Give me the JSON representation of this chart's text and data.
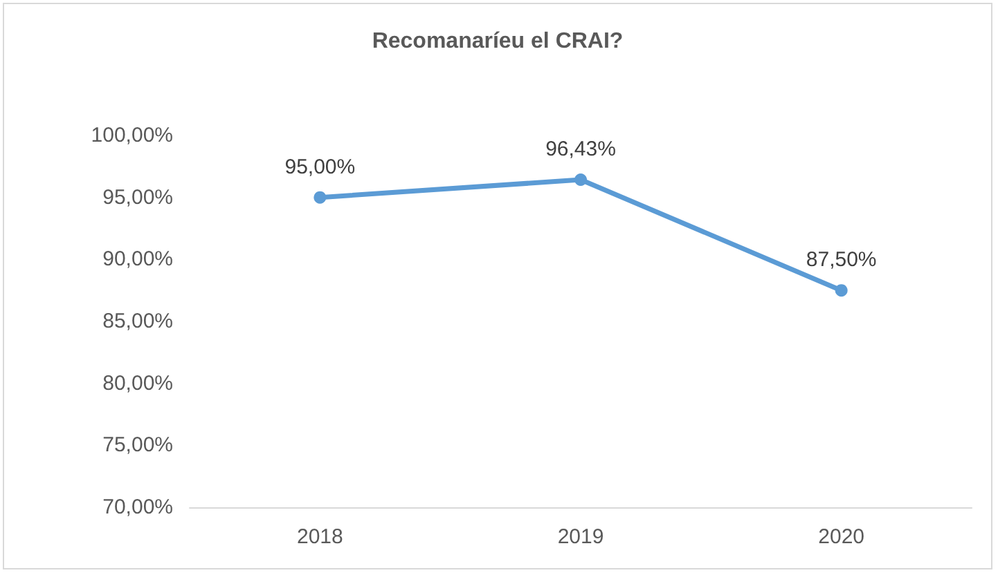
{
  "chart_data": {
    "type": "line",
    "title": "Recomanaríeu el CRAI?",
    "categories": [
      "2018",
      "2019",
      "2020"
    ],
    "values": [
      95,
      96.43,
      87.5
    ],
    "value_labels": [
      "95,00%",
      "96,43%",
      "87,50%"
    ],
    "color": "#5b9bd5",
    "marker": "circle",
    "line_style": "solid",
    "grid": false,
    "ylim": [
      70,
      100
    ],
    "yticks": [
      {
        "value": 70,
        "label": "70,00%"
      },
      {
        "value": 75,
        "label": "75,00%"
      },
      {
        "value": 80,
        "label": "80,00%"
      },
      {
        "value": 85,
        "label": "85,00%"
      },
      {
        "value": 90,
        "label": "90,00%"
      },
      {
        "value": 95,
        "label": "95,00%"
      },
      {
        "value": 100,
        "label": "100,00%"
      }
    ]
  }
}
